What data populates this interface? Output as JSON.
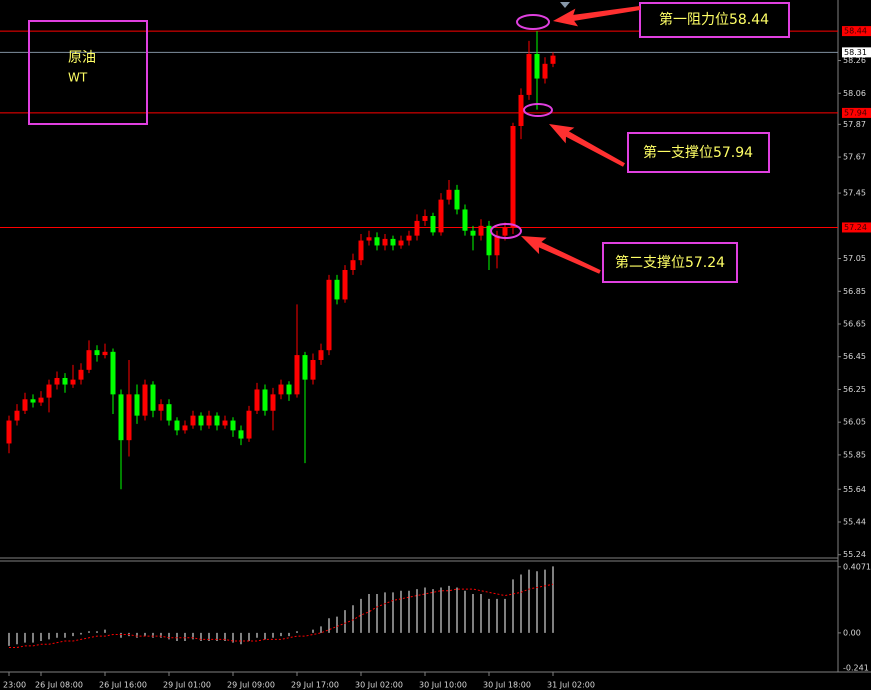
{
  "chart_data": {
    "type": "candlestick",
    "symbol_name": "原油",
    "symbol_code": "WT",
    "annotations": [
      "第一阻力位58.44",
      "第一支撑位57.94",
      "第二支撑位57.24"
    ],
    "categories": [
      "23:00",
      null,
      null,
      null,
      "26 Jul 08:00",
      null,
      null,
      null,
      null,
      null,
      null,
      null,
      "26 Jul 16:00",
      null,
      null,
      null,
      null,
      null,
      null,
      null,
      "29 Jul 01:00",
      null,
      null,
      null,
      null,
      null,
      null,
      null,
      "29 Jul 09:00",
      null,
      null,
      null,
      null,
      null,
      null,
      null,
      "29 Jul 17:00",
      null,
      null,
      null,
      null,
      null,
      null,
      null,
      "30 Jul 02:00",
      null,
      null,
      null,
      null,
      null,
      null,
      null,
      "30 Jul 10:00",
      null,
      null,
      null,
      null,
      null,
      null,
      null,
      "30 Jul 18:00",
      null,
      null,
      null,
      null,
      null,
      null,
      null,
      "31 Jul 02:00"
    ],
    "open": [
      55.92,
      56.06,
      56.12,
      56.19,
      56.17,
      56.2,
      56.28,
      56.32,
      56.28,
      56.31,
      56.37,
      56.49,
      56.46,
      56.48,
      56.22,
      55.94,
      56.22,
      56.09,
      56.28,
      56.12,
      56.16,
      56.06,
      56.0,
      56.03,
      56.09,
      56.03,
      56.09,
      56.03,
      56.06,
      56.0,
      55.95,
      56.12,
      56.25,
      56.12,
      56.22,
      56.28,
      56.22,
      56.46,
      56.31,
      56.43,
      56.49,
      56.92,
      56.8,
      56.98,
      57.04,
      57.16,
      57.18,
      57.13,
      57.17,
      57.13,
      57.16,
      57.19,
      57.28,
      57.31,
      57.21,
      57.41,
      57.47,
      57.35,
      57.22,
      57.19,
      57.25,
      57.07,
      57.19,
      57.24,
      57.86,
      58.05,
      58.3,
      58.15,
      58.24
    ],
    "high": [
      56.09,
      56.16,
      56.23,
      56.22,
      56.24,
      56.31,
      56.36,
      56.35,
      56.4,
      56.41,
      56.55,
      56.52,
      56.53,
      56.5,
      56.25,
      56.43,
      56.28,
      56.31,
      56.3,
      56.19,
      56.19,
      56.08,
      56.06,
      56.12,
      56.11,
      56.12,
      56.11,
      56.09,
      56.08,
      56.03,
      56.15,
      56.29,
      56.28,
      56.26,
      56.31,
      56.3,
      56.77,
      56.48,
      56.47,
      56.53,
      56.95,
      56.95,
      57.01,
      57.08,
      57.2,
      57.22,
      57.21,
      57.2,
      57.19,
      57.19,
      57.22,
      57.32,
      57.35,
      57.33,
      57.45,
      57.53,
      57.5,
      57.38,
      57.25,
      57.29,
      57.28,
      57.22,
      57.27,
      57.88,
      58.09,
      58.38,
      58.44,
      58.28,
      58.31
    ],
    "low": [
      55.86,
      56.03,
      56.1,
      56.14,
      56.15,
      56.11,
      56.25,
      56.23,
      56.26,
      56.28,
      56.35,
      56.42,
      56.44,
      56.1,
      55.64,
      55.84,
      56.04,
      56.06,
      56.08,
      56.06,
      56.03,
      55.97,
      55.98,
      56.01,
      56.0,
      56.01,
      56.0,
      56.01,
      55.96,
      55.91,
      55.93,
      56.1,
      56.09,
      56.0,
      56.19,
      56.18,
      56.2,
      55.8,
      56.28,
      56.4,
      56.46,
      56.77,
      56.78,
      56.95,
      57.01,
      57.13,
      57.1,
      57.1,
      57.1,
      57.11,
      57.13,
      57.16,
      57.25,
      57.19,
      57.19,
      57.38,
      57.32,
      57.19,
      57.1,
      57.16,
      56.98,
      56.99,
      57.16,
      57.2,
      57.78,
      58.02,
      57.96,
      58.12,
      58.22
    ],
    "close": [
      56.06,
      56.12,
      56.19,
      56.17,
      56.2,
      56.28,
      56.32,
      56.28,
      56.31,
      56.37,
      56.49,
      56.46,
      56.48,
      56.22,
      55.94,
      56.22,
      56.09,
      56.28,
      56.12,
      56.16,
      56.06,
      56.0,
      56.03,
      56.09,
      56.03,
      56.09,
      56.03,
      56.06,
      56.0,
      55.95,
      56.12,
      56.25,
      56.12,
      56.22,
      56.28,
      56.22,
      56.46,
      56.31,
      56.43,
      56.49,
      56.92,
      56.8,
      56.98,
      57.04,
      57.16,
      57.18,
      57.13,
      57.17,
      57.13,
      57.16,
      57.19,
      57.28,
      57.31,
      57.21,
      57.41,
      57.47,
      57.35,
      57.22,
      57.19,
      57.25,
      57.07,
      57.19,
      57.24,
      57.86,
      58.05,
      58.3,
      58.15,
      58.24,
      58.29
    ],
    "up_color": "#ff0000",
    "down_color": "#00ff00",
    "ylim": [
      55.22,
      58.63
    ],
    "yticks": [
      58.26,
      58.06,
      57.87,
      57.67,
      57.45,
      57.05,
      56.85,
      56.65,
      56.45,
      56.25,
      56.05,
      55.85,
      55.64,
      55.44,
      55.24
    ],
    "levels": [
      58.44,
      57.94,
      57.24
    ],
    "level_color": "#ff0000",
    "current_price": 58.31,
    "indicator": {
      "macd": [
        -0.08,
        -0.07,
        -0.06,
        -0.06,
        -0.05,
        -0.04,
        -0.03,
        -0.03,
        -0.02,
        -0.01,
        0.01,
        0.01,
        0.02,
        0.0,
        -0.03,
        -0.02,
        -0.03,
        -0.02,
        -0.03,
        -0.03,
        -0.04,
        -0.05,
        -0.05,
        -0.04,
        -0.05,
        -0.05,
        -0.05,
        -0.05,
        -0.06,
        -0.07,
        -0.05,
        -0.03,
        -0.04,
        -0.03,
        -0.02,
        -0.02,
        0.01,
        0.0,
        0.02,
        0.04,
        0.09,
        0.1,
        0.14,
        0.17,
        0.21,
        0.24,
        0.24,
        0.25,
        0.25,
        0.26,
        0.26,
        0.27,
        0.28,
        0.27,
        0.28,
        0.29,
        0.28,
        0.26,
        0.24,
        0.24,
        0.21,
        0.21,
        0.21,
        0.33,
        0.36,
        0.39,
        0.38,
        0.39,
        0.41
      ],
      "signal": [
        -0.09,
        -0.09,
        -0.08,
        -0.08,
        -0.07,
        -0.07,
        -0.06,
        -0.05,
        -0.05,
        -0.04,
        -0.03,
        -0.02,
        -0.02,
        -0.01,
        -0.01,
        -0.01,
        -0.02,
        -0.02,
        -0.02,
        -0.02,
        -0.03,
        -0.03,
        -0.03,
        -0.03,
        -0.04,
        -0.04,
        -0.04,
        -0.04,
        -0.05,
        -0.05,
        -0.05,
        -0.05,
        -0.04,
        -0.04,
        -0.04,
        -0.03,
        -0.02,
        -0.02,
        -0.01,
        0.0,
        0.02,
        0.04,
        0.06,
        0.08,
        0.11,
        0.13,
        0.16,
        0.18,
        0.2,
        0.21,
        0.22,
        0.23,
        0.24,
        0.25,
        0.26,
        0.26,
        0.27,
        0.27,
        0.27,
        0.26,
        0.25,
        0.24,
        0.23,
        0.24,
        0.25,
        0.27,
        0.28,
        0.29,
        0.3
      ],
      "bar_color": "#ffffff",
      "signal_color": "#ff0000",
      "ylim": [
        -0.241,
        0.4431
      ],
      "yticks": [
        0.4071,
        {
          "value": 0,
          "label": "0.00"
        },
        -0.241
      ]
    }
  }
}
